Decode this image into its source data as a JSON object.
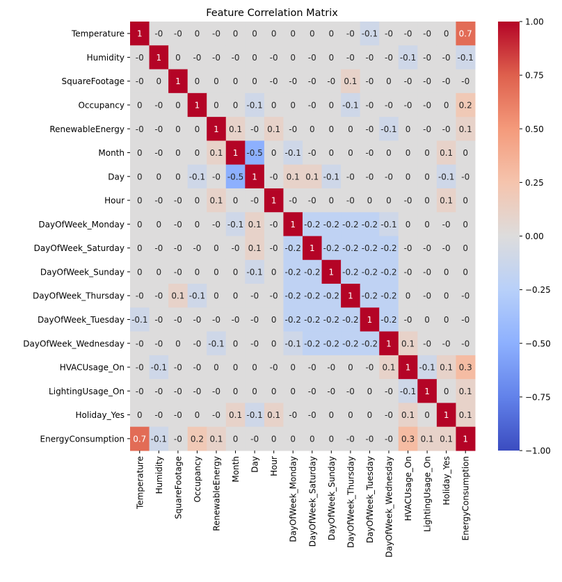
{
  "chart_data": {
    "type": "heatmap",
    "title": "Feature Correlation Matrix",
    "xlabel": "",
    "ylabel": "",
    "colormap": "coolwarm",
    "vmin": -1.0,
    "vmax": 1.0,
    "annotated": true,
    "annotation_precision": 1,
    "legend": "colorbar-right",
    "colorbar_ticks": [
      "-1.00",
      "-0.75",
      "-0.50",
      "-0.25",
      "0.00",
      "0.25",
      "0.50",
      "0.75",
      "1.00"
    ],
    "colorbar_tick_values": [
      -1.0,
      -0.75,
      -0.5,
      -0.25,
      0.0,
      0.25,
      0.5,
      0.75,
      1.0
    ],
    "labels": [
      "Temperature",
      "Humidity",
      "SquareFootage",
      "Occupancy",
      "RenewableEnergy",
      "Month",
      "Day",
      "Hour",
      "DayOfWeek_Monday",
      "DayOfWeek_Saturday",
      "DayOfWeek_Sunday",
      "DayOfWeek_Thursday",
      "DayOfWeek_Tuesday",
      "DayOfWeek_Wednesday",
      "HVACUsage_On",
      "LightingUsage_On",
      "Holiday_Yes",
      "EnergyConsumption"
    ],
    "annotations": [
      [
        "1",
        "-0",
        "-0",
        "0",
        "-0",
        "0",
        "0",
        "0",
        "0",
        "0",
        "0",
        "-0",
        "-0.1",
        "-0",
        "-0",
        "-0",
        "0",
        "0.7"
      ],
      [
        "-0",
        "1",
        "0",
        "-0",
        "-0",
        "-0",
        "0",
        "-0",
        "0",
        "-0",
        "0",
        "-0",
        "-0",
        "-0",
        "-0.1",
        "-0",
        "-0",
        "-0.1"
      ],
      [
        "-0",
        "0",
        "1",
        "0",
        "0",
        "0",
        "0",
        "-0",
        "-0",
        "-0",
        "-0",
        "0.1",
        "-0",
        "0",
        "-0",
        "-0",
        "-0",
        "-0"
      ],
      [
        "0",
        "-0",
        "0",
        "1",
        "0",
        "0",
        "-0.1",
        "0",
        "0",
        "-0",
        "0",
        "-0.1",
        "-0",
        "-0",
        "-0",
        "-0",
        "0",
        "0.2"
      ],
      [
        "-0",
        "-0",
        "0",
        "0",
        "1",
        "0.1",
        "-0",
        "0.1",
        "-0",
        "0",
        "0",
        "0",
        "-0",
        "-0.1",
        "0",
        "-0",
        "-0",
        "0.1"
      ],
      [
        "0",
        "-0",
        "0",
        "0",
        "0.1",
        "1",
        "-0.5",
        "0",
        "-0.1",
        "-0",
        "0",
        "0",
        "-0",
        "0",
        "0",
        "0",
        "0.1",
        "0"
      ],
      [
        "0",
        "0",
        "0",
        "-0.1",
        "-0",
        "-0.5",
        "1",
        "-0",
        "0.1",
        "0.1",
        "-0.1",
        "-0",
        "-0",
        "-0",
        "0",
        "0",
        "-0.1",
        "-0"
      ],
      [
        "0",
        "-0",
        "-0",
        "0",
        "0.1",
        "0",
        "-0",
        "1",
        "-0",
        "-0",
        "0",
        "-0",
        "0",
        "0",
        "-0",
        "0",
        "0.1",
        "0"
      ],
      [
        "0",
        "0",
        "-0",
        "0",
        "-0",
        "-0.1",
        "0.1",
        "-0",
        "1",
        "-0.2",
        "-0.2",
        "-0.2",
        "-0.2",
        "-0.1",
        "0",
        "0",
        "-0",
        "0"
      ],
      [
        "0",
        "-0",
        "-0",
        "-0",
        "0",
        "-0",
        "0.1",
        "-0",
        "-0.2",
        "1",
        "-0.2",
        "-0.2",
        "-0.2",
        "-0.2",
        "-0",
        "-0",
        "-0",
        "0"
      ],
      [
        "0",
        "0",
        "-0",
        "0",
        "0",
        "0",
        "-0.1",
        "0",
        "-0.2",
        "-0.2",
        "1",
        "-0.2",
        "-0.2",
        "-0.2",
        "-0",
        "-0",
        "0",
        "0"
      ],
      [
        "-0",
        "-0",
        "0.1",
        "-0.1",
        "0",
        "0",
        "-0",
        "-0",
        "-0.2",
        "-0.2",
        "-0.2",
        "1",
        "-0.2",
        "-0.2",
        "0",
        "-0",
        "0",
        "-0"
      ],
      [
        "-0.1",
        "-0",
        "-0",
        "-0",
        "-0",
        "-0",
        "-0",
        "0",
        "-0.2",
        "-0.2",
        "-0.2",
        "-0.2",
        "1",
        "-0.2",
        "-0",
        "0",
        "0",
        "-0"
      ],
      [
        "-0",
        "-0",
        "0",
        "-0",
        "-0.1",
        "0",
        "-0",
        "0",
        "-0.1",
        "-0.2",
        "-0.2",
        "-0.2",
        "-0.2",
        "1",
        "0.1",
        "-0",
        "-0",
        "-0"
      ],
      [
        "-0",
        "-0.1",
        "-0",
        "-0",
        "0",
        "0",
        "0",
        "-0",
        "0",
        "-0",
        "-0",
        "0",
        "-0",
        "0.1",
        "1",
        "-0.1",
        "0.1",
        "0.3"
      ],
      [
        "-0",
        "-0",
        "-0",
        "-0",
        "-0",
        "0",
        "0",
        "0",
        "0",
        "-0",
        "-0",
        "-0",
        "0",
        "-0",
        "-0.1",
        "1",
        "0",
        "0.1"
      ],
      [
        "0",
        "-0",
        "-0",
        "0",
        "-0",
        "0.1",
        "-0.1",
        "0.1",
        "-0",
        "-0",
        "0",
        "0",
        "0",
        "-0",
        "0.1",
        "0",
        "1",
        "0.1"
      ],
      [
        "0.7",
        "-0.1",
        "-0",
        "0.2",
        "0.1",
        "0",
        "-0",
        "0",
        "0",
        "0",
        "0",
        "-0",
        "-0",
        "-0",
        "0.3",
        "0.1",
        "0.1",
        "1"
      ]
    ]
  }
}
